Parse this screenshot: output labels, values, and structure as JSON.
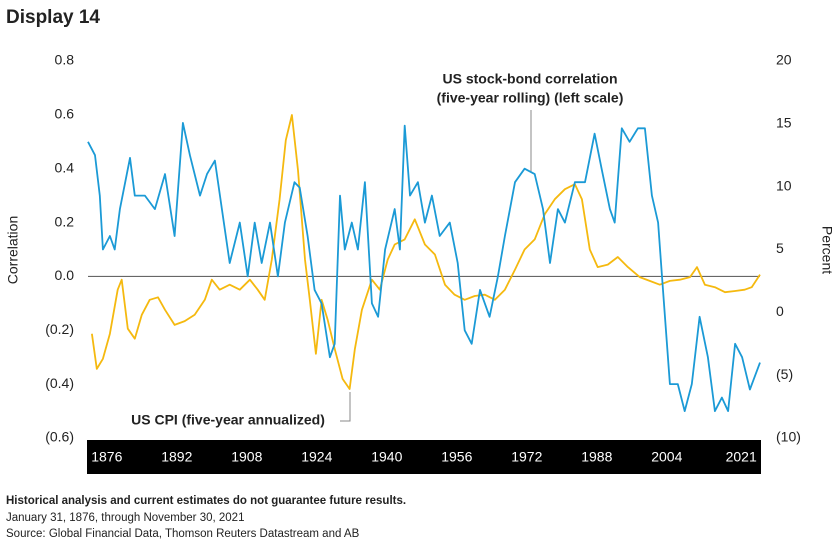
{
  "chart_data": {
    "type": "line",
    "title": "Display 14",
    "y_label": "Correlation",
    "y2_label": "Percent",
    "annotations": [
      "US stock-bond correlation",
      "(five-year rolling) (left scale)",
      "US CPI (five-year annualized)"
    ],
    "note": "Historical analysis and current estimates do not guarantee future results.",
    "footnotes": [
      "January 31, 1876, through November 30, 2021",
      "Source: Global Financial Data, Thomson Reuters Datastream and AB"
    ],
    "xlim": [
      1871.7,
      2025.3
    ],
    "xticks": [
      1876,
      1892,
      1908,
      1924,
      1940,
      1956,
      1972,
      1988,
      2004,
      2021
    ],
    "ylim": [
      -0.6,
      0.8
    ],
    "yticks": [
      {
        "value": -0.6,
        "label": "(0.6)"
      },
      {
        "value": -0.4,
        "label": "(0.4)"
      },
      {
        "value": -0.2,
        "label": "(0.2)"
      },
      {
        "value": 0,
        "label": "0.0"
      },
      0.2,
      0.4,
      0.6,
      0.8
    ],
    "y2lim": [
      -10,
      20
    ],
    "y2ticks": [
      {
        "value": -10,
        "label": "(10)"
      },
      {
        "value": -5,
        "label": "(5)"
      },
      0,
      5,
      10,
      15,
      20
    ],
    "series": [
      {
        "color": "#1b9ad6",
        "x": [
          1871.7,
          1873.3,
          1874.4,
          1875.1,
          1876.7,
          1877.8,
          1879.0,
          1881.3,
          1882.4,
          1884.7,
          1887.0,
          1889.3,
          1891.5,
          1893.4,
          1895.0,
          1897.3,
          1898.9,
          1900.7,
          1902.3,
          1904.1,
          1906.4,
          1908.2,
          1909.8,
          1911.4,
          1913.3,
          1915.1,
          1916.7,
          1918.9,
          1920.1,
          1921.9,
          1923.5,
          1925.1,
          1927.0,
          1928.1,
          1929.3,
          1930.4,
          1932.0,
          1933.4,
          1935.0,
          1936.6,
          1938.0,
          1939.6,
          1941.8,
          1943.0,
          1944.1,
          1945.3,
          1947.1,
          1948.7,
          1950.3,
          1952.1,
          1954.4,
          1956.2,
          1957.8,
          1959.4,
          1961.3,
          1963.5,
          1965.4,
          1967.0,
          1969.3,
          1971.5,
          1973.8,
          1975.7,
          1977.3,
          1979.1,
          1980.7,
          1983.0,
          1985.3,
          1987.5,
          1989.1,
          1991.0,
          1992.1,
          1993.7,
          1995.5,
          1997.4,
          1999.0,
          2000.6,
          2002.0,
          2002.9,
          2004.7,
          2006.5,
          2008.1,
          2009.7,
          2011.5,
          2013.4,
          2015.0,
          2016.6,
          2018.0,
          2019.6,
          2021.2,
          2023.0,
          2025.3
        ],
        "values": [
          0.5,
          0.45,
          0.3,
          0.1,
          0.15,
          0.1,
          0.25,
          0.44,
          0.3,
          0.3,
          0.25,
          0.38,
          0.15,
          0.57,
          0.45,
          0.3,
          0.38,
          0.43,
          0.25,
          0.05,
          0.2,
          0.0,
          0.2,
          0.05,
          0.2,
          0.0,
          0.2,
          0.35,
          0.33,
          0.15,
          -0.05,
          -0.1,
          -0.3,
          -0.25,
          0.3,
          0.1,
          0.2,
          0.1,
          0.35,
          -0.1,
          -0.15,
          0.1,
          0.25,
          0.1,
          0.56,
          0.3,
          0.35,
          0.2,
          0.3,
          0.15,
          0.2,
          0.05,
          -0.2,
          -0.25,
          -0.05,
          -0.15,
          0.0,
          0.15,
          0.35,
          0.4,
          0.38,
          0.25,
          0.05,
          0.25,
          0.2,
          0.35,
          0.35,
          0.53,
          0.4,
          0.25,
          0.2,
          0.55,
          0.5,
          0.55,
          0.55,
          0.3,
          0.2,
          0.0,
          -0.4,
          -0.4,
          -0.5,
          -0.4,
          -0.15,
          -0.3,
          -0.5,
          -0.45,
          -0.5,
          -0.25,
          -0.3,
          -0.42,
          -0.32
        ]
      },
      {
        "color": "#f5b90f",
        "axis": "y2",
        "x": [
          1872.6,
          1873.7,
          1875.1,
          1876.7,
          1878.5,
          1879.4,
          1880.8,
          1882.4,
          1884.0,
          1885.8,
          1887.7,
          1889.3,
          1891.5,
          1893.8,
          1896.1,
          1898.4,
          1900.0,
          1901.8,
          1904.1,
          1906.4,
          1908.7,
          1910.5,
          1912.1,
          1913.7,
          1915.5,
          1916.9,
          1918.3,
          1919.7,
          1921.3,
          1922.4,
          1923.8,
          1925.1,
          1926.5,
          1928.1,
          1929.9,
          1931.5,
          1932.7,
          1934.3,
          1936.6,
          1938.4,
          1940.2,
          1941.8,
          1944.1,
          1946.4,
          1948.7,
          1951.0,
          1953.3,
          1955.5,
          1957.8,
          1960.1,
          1962.4,
          1964.7,
          1967.0,
          1969.3,
          1971.5,
          1973.8,
          1976.1,
          1978.4,
          1980.7,
          1983.0,
          1984.6,
          1986.4,
          1988.2,
          1990.5,
          1992.8,
          1995.1,
          1997.8,
          2000.1,
          2002.4,
          2004.7,
          2007.0,
          2009.3,
          2010.9,
          2012.7,
          2015.0,
          2017.3,
          2019.6,
          2021.8,
          2023.4,
          2025.3
        ],
        "values": [
          -1.7,
          -4.5,
          -3.7,
          -1.7,
          1.8,
          2.6,
          -1.3,
          -2.1,
          -0.2,
          1.0,
          1.2,
          0.2,
          -1.0,
          -0.7,
          -0.2,
          1.0,
          2.6,
          1.8,
          2.2,
          1.8,
          2.6,
          1.8,
          1.0,
          4.2,
          9.0,
          13.7,
          15.7,
          11.3,
          4.2,
          1.0,
          -3.3,
          1.0,
          -0.6,
          -2.9,
          -5.3,
          -6.1,
          -2.9,
          0.2,
          2.6,
          1.8,
          4.2,
          5.4,
          5.8,
          7.4,
          5.4,
          4.6,
          2.2,
          1.4,
          1.0,
          1.3,
          1.4,
          1.0,
          1.8,
          3.4,
          5.0,
          5.8,
          7.8,
          9.0,
          9.8,
          10.2,
          9.0,
          5.0,
          3.6,
          3.8,
          4.4,
          3.6,
          2.8,
          2.5,
          2.2,
          2.5,
          2.6,
          2.8,
          3.6,
          2.2,
          2.0,
          1.6,
          1.7,
          1.8,
          2.0,
          3.0
        ]
      }
    ]
  }
}
